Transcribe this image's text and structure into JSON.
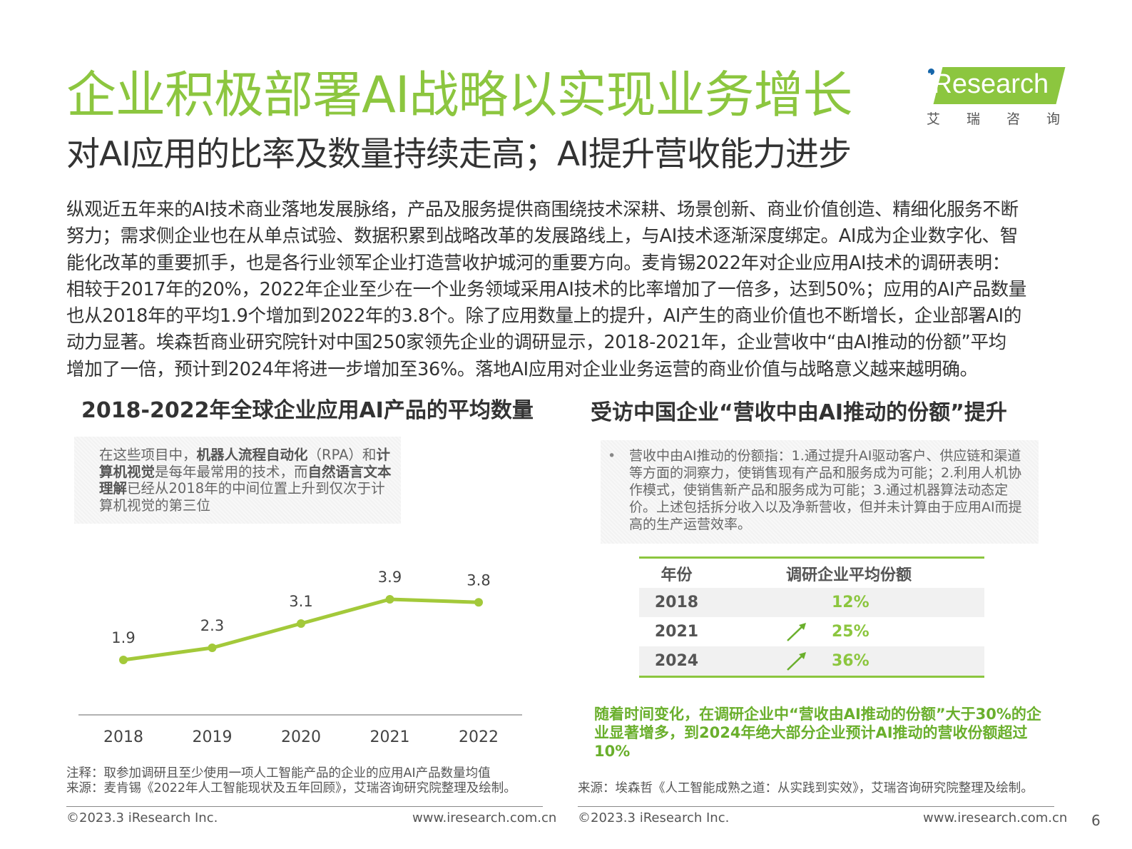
{
  "title": "企业积极部署AI战略以实现业务增长",
  "subtitle": "对AI应用的比率及数量持续走高；AI提升营收能力进步",
  "logo": {
    "name": "iResearch",
    "sub": [
      "艾",
      "瑞",
      "咨",
      "询"
    ]
  },
  "body_lines": [
    "纵观近五年来的AI技术商业落地发展脉络，产品及服务提供商围绕技术深耕、场景创新、商业价值创造、精细化服务不断",
    "努力；需求侧企业也在从单点试验、数据积累到战略改革的发展路线上，与AI技术逐渐深度绑定。AI成为企业数字化、智",
    "能化改革的重要抓手，也是各行业领军企业打造营收护城河的重要方向。麦肯锡2022年对企业应用AI技术的调研表明：",
    "相较于2017年的20%，2022年企业至少在一个业务领域采用AI技术的比率增加了一倍多，达到50%；应用的AI产品数量",
    "也从2018年的平均1.9个增加到2022年的3.8个。除了应用数量上的提升，AI产生的商业价值也不断增长，企业部署AI的",
    "动力显著。埃森哲商业研究院针对中国250家领先企业的调研显示，2018-2021年，企业营收中“由AI推动的份额”平均",
    "增加了一倍，预计到2024年将进一步增加至36%。落地AI应用对企业业务运营的商业价值与战略意义越来越明确。"
  ],
  "left": {
    "heading": "2018-2022年全球企业应用AI产品的平均数量",
    "note": {
      "p1": "在这些项目中，",
      "b1": "机器人流程自动化",
      "p2": "（RPA）和",
      "b2": "计算机视觉",
      "p3": "是每年最常用的技术，而",
      "b3": "自然语言文本理解",
      "p4": "已经从2018年的中间位置上升到仅次于计算机视觉的第三位"
    },
    "footnote1": "注释：取参加调研且至少使用一项人工智能产品的企业的应用AI产品数量均值",
    "footnote2": "来源：麦肯锡《2022年人工智能现状及五年回顾》，艾瑞咨询研究院整理及绘制。"
  },
  "chart_data": {
    "type": "line",
    "title": "2018-2022年全球企业应用AI产品的平均数量",
    "categories": [
      "2018",
      "2019",
      "2020",
      "2021",
      "2022"
    ],
    "values": [
      1.9,
      2.3,
      3.1,
      3.9,
      3.8
    ],
    "labels": [
      "1.9",
      "2.3",
      "3.1",
      "3.9",
      "3.8"
    ],
    "series_color": "#a3c93a",
    "grid": false,
    "ylim": [
      1.0,
      4.5
    ]
  },
  "right": {
    "heading": "受访中国企业“营收中由AI推动的份额”提升",
    "note": "营收中由AI推动的份额指：1.通过提升AI驱动客户、供应链和渠道等方面的洞察力，使销售现有产品和服务成为可能；2.利用人机协作模式，使销售新产品和服务成为可能；3.通过机器算法动态定价。上述包括拆分收入以及净新营收，但并未计算由于应用AI而提高的生产运营效率。",
    "table": {
      "headers": [
        "年份",
        "调研企业平均份额"
      ],
      "rows": [
        {
          "year": "2018",
          "value": "12%",
          "arrow": false
        },
        {
          "year": "2021",
          "value": "25%",
          "arrow": true
        },
        {
          "year": "2024",
          "value": "36%",
          "arrow": true
        }
      ]
    },
    "conclusion": "随着时间变化，在调研企业中“营收由AI推动的份额”大于30%的企业显著增多，到2024年绝大部分企业预计AI推动的营收份额超过10%",
    "footnote": "来源：埃森哲《人工智能成熟之道：从实践到实效》，艾瑞咨询研究院整理及绘制。"
  },
  "footer": {
    "copyright": "©2023.3 iResearch Inc.",
    "url": "www.iresearch.com.cn",
    "page": "6"
  },
  "colors": {
    "accent": "#8cc63f",
    "text": "#333333"
  }
}
